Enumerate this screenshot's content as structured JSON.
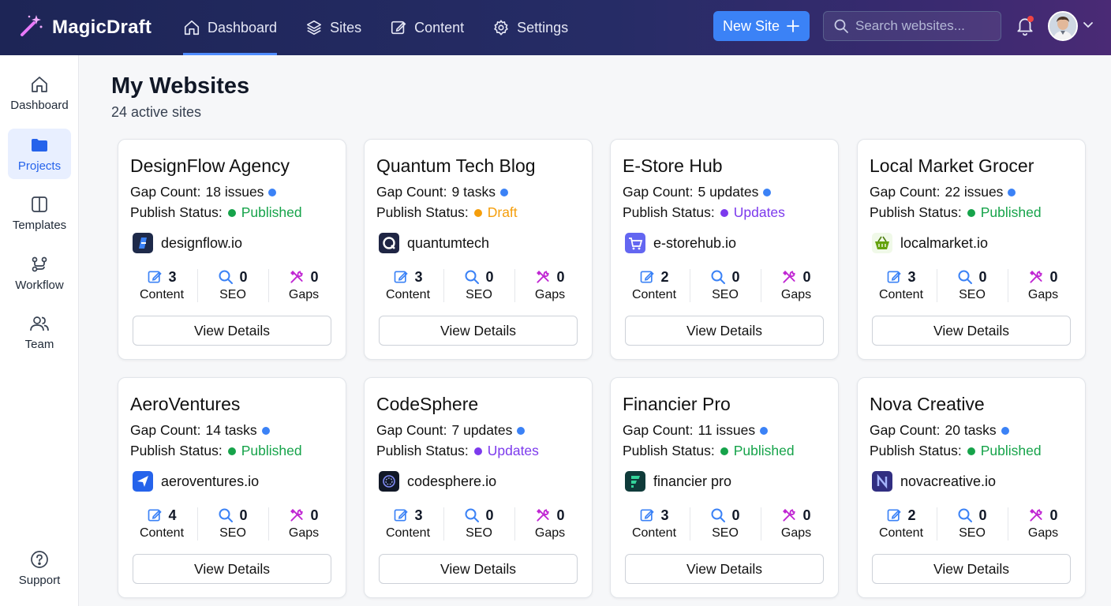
{
  "app": {
    "name": "MagicDraft"
  },
  "nav": [
    {
      "label": "Dashboard",
      "icon": "home-icon",
      "active": true
    },
    {
      "label": "Sites",
      "icon": "layers-icon"
    },
    {
      "label": "Content",
      "icon": "edit-icon"
    },
    {
      "label": "Settings",
      "icon": "gear-icon"
    }
  ],
  "header": {
    "new_site_label": "New Site",
    "search_placeholder": "Search websites..."
  },
  "sidebar": {
    "items": [
      {
        "label": "Dashboard",
        "icon": "home-icon"
      },
      {
        "label": "Projects",
        "icon": "folder-icon",
        "active": true
      },
      {
        "label": "Templates",
        "icon": "panel-icon"
      },
      {
        "label": "Workflow",
        "icon": "workflow-icon"
      },
      {
        "label": "Team",
        "icon": "users-icon"
      }
    ],
    "support_label": "Support"
  },
  "page": {
    "title": "My Websites",
    "subtitle": "24 active sites"
  },
  "labels": {
    "gap_prefix": "Gap Count:",
    "status_prefix": "Publish Status:",
    "content": "Content",
    "seo": "SEO",
    "gaps": "Gaps",
    "view_details": "View Details"
  },
  "colors": {
    "accent": "#3b82f6",
    "published": "#16a34a",
    "draft": "#f59e0b",
    "updates": "#7c3aed"
  },
  "sites": [
    {
      "name": "DesignFlow Agency",
      "gap": "18 issues",
      "status": "Published",
      "domain": "designflow.io",
      "logo": "designflow-logo",
      "content": "3",
      "seo": "0",
      "gaps": "0"
    },
    {
      "name": "Quantum Tech Blog",
      "gap": "9 tasks",
      "status": "Draft",
      "domain": "quantumtech",
      "logo": "quantum-logo",
      "content": "3",
      "seo": "0",
      "gaps": "0"
    },
    {
      "name": "E-Store Hub",
      "gap": "5 updates",
      "status": "Updates",
      "domain": "e-storehub.io",
      "logo": "cart-logo",
      "content": "2",
      "seo": "0",
      "gaps": "0"
    },
    {
      "name": "Local Market Grocer",
      "gap": "22 issues",
      "status": "Published",
      "domain": "localmarket.io",
      "logo": "basket-logo",
      "content": "3",
      "seo": "0",
      "gaps": "0"
    },
    {
      "name": "AeroVentures",
      "gap": "14 tasks",
      "status": "Published",
      "domain": "aeroventures.io",
      "logo": "plane-logo",
      "content": "4",
      "seo": "0",
      "gaps": "0"
    },
    {
      "name": "CodeSphere",
      "gap": "7 updates",
      "status": "Updates",
      "domain": "codesphere.io",
      "logo": "sphere-logo",
      "content": "3",
      "seo": "0",
      "gaps": "0"
    },
    {
      "name": "Financier Pro",
      "gap": "11 issues",
      "status": "Published",
      "domain": "financier pro",
      "logo": "financier-logo",
      "content": "3",
      "seo": "0",
      "gaps": "0"
    },
    {
      "name": "Nova Creative",
      "gap": "20 tasks",
      "status": "Published",
      "domain": "novacreative.io",
      "logo": "nova-logo",
      "content": "2",
      "seo": "0",
      "gaps": "0"
    }
  ]
}
